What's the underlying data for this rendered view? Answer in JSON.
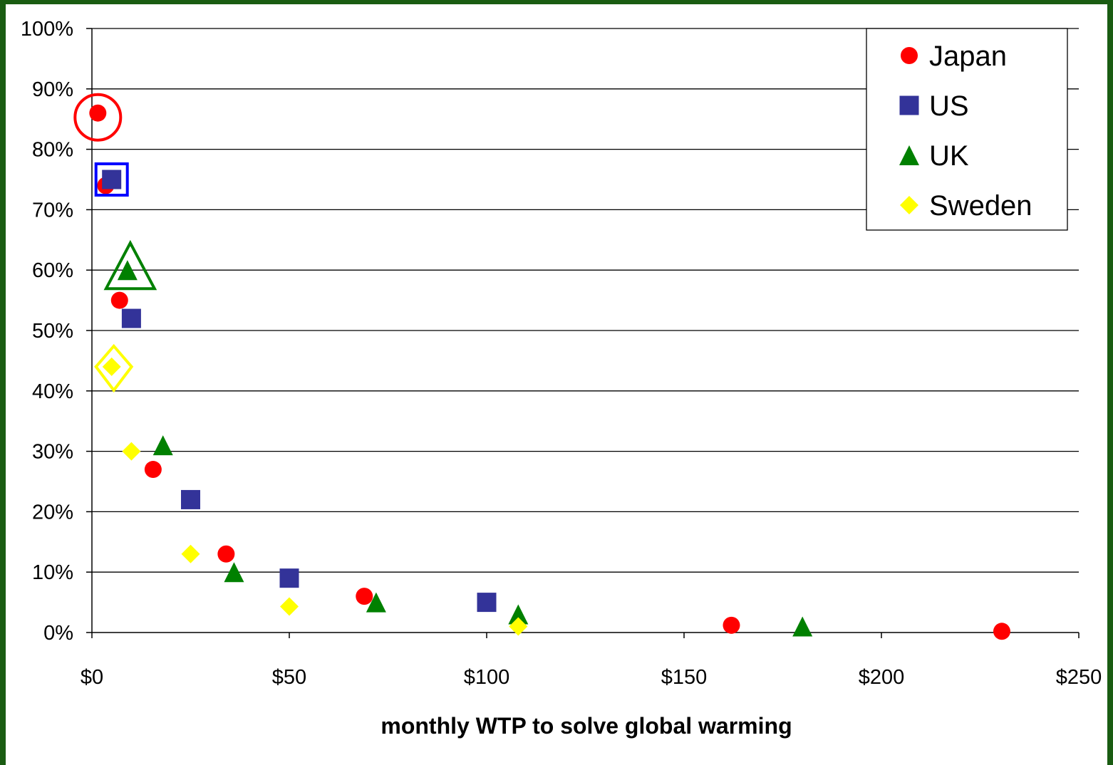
{
  "chart_data": {
    "type": "scatter",
    "title": "",
    "xlabel": "monthly WTP to solve global warming",
    "ylabel": "",
    "xlim": [
      0,
      250
    ],
    "ylim": [
      0,
      100
    ],
    "x_ticks": [
      0,
      50,
      100,
      150,
      200,
      250
    ],
    "x_tick_labels": [
      "$0",
      "$50",
      "$100",
      "$150",
      "$200",
      "$250"
    ],
    "y_ticks": [
      0,
      10,
      20,
      30,
      40,
      50,
      60,
      70,
      80,
      90,
      100
    ],
    "y_tick_labels": [
      "0%",
      "10%",
      "20%",
      "30%",
      "40%",
      "50%",
      "60%",
      "70%",
      "80%",
      "90%",
      "100%"
    ],
    "grid": "horizontal",
    "legend_position": "top-right",
    "series": [
      {
        "name": "Japan",
        "marker": "circle",
        "color": "#ff0000",
        "highlight_index": 0,
        "points": [
          [
            1.5,
            86
          ],
          [
            3.5,
            74
          ],
          [
            7,
            55
          ],
          [
            15.5,
            27
          ],
          [
            34,
            13
          ],
          [
            69,
            6
          ],
          [
            162,
            1.2
          ],
          [
            230.5,
            0.2
          ]
        ]
      },
      {
        "name": "US",
        "marker": "square",
        "color": "#333399",
        "highlight_index": 0,
        "points": [
          [
            5,
            75
          ],
          [
            10,
            52
          ],
          [
            25,
            22
          ],
          [
            50,
            9
          ],
          [
            100,
            5
          ]
        ]
      },
      {
        "name": "UK",
        "marker": "triangle",
        "color": "#008000",
        "highlight_index": 0,
        "points": [
          [
            9,
            60
          ],
          [
            18,
            31
          ],
          [
            36,
            10
          ],
          [
            72,
            5
          ],
          [
            108,
            3
          ],
          [
            180,
            1
          ]
        ]
      },
      {
        "name": "Sweden",
        "marker": "diamond",
        "color": "#ffff00",
        "highlight_index": 0,
        "points": [
          [
            5,
            44
          ],
          [
            10,
            30
          ],
          [
            25,
            13
          ],
          [
            50,
            4.3
          ],
          [
            108,
            1
          ]
        ]
      }
    ]
  }
}
